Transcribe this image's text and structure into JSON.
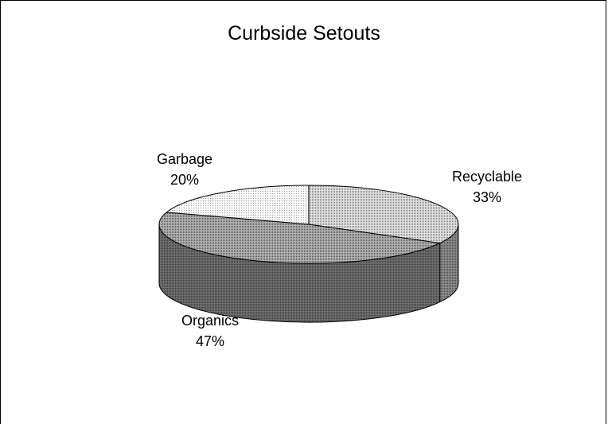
{
  "chart_data": {
    "type": "pie",
    "title": "Curbside Setouts",
    "slices": [
      {
        "label": "Recyclable",
        "percent_label": "33%",
        "value": 33,
        "color": "#d4d4d4"
      },
      {
        "label": "Organics",
        "percent_label": "47%",
        "value": 47,
        "color": "#9a9a9a"
      },
      {
        "label": "Garbage",
        "percent_label": "20%",
        "value": 20,
        "color": "#eeeeee"
      }
    ],
    "three_d": true,
    "legend": "none"
  }
}
